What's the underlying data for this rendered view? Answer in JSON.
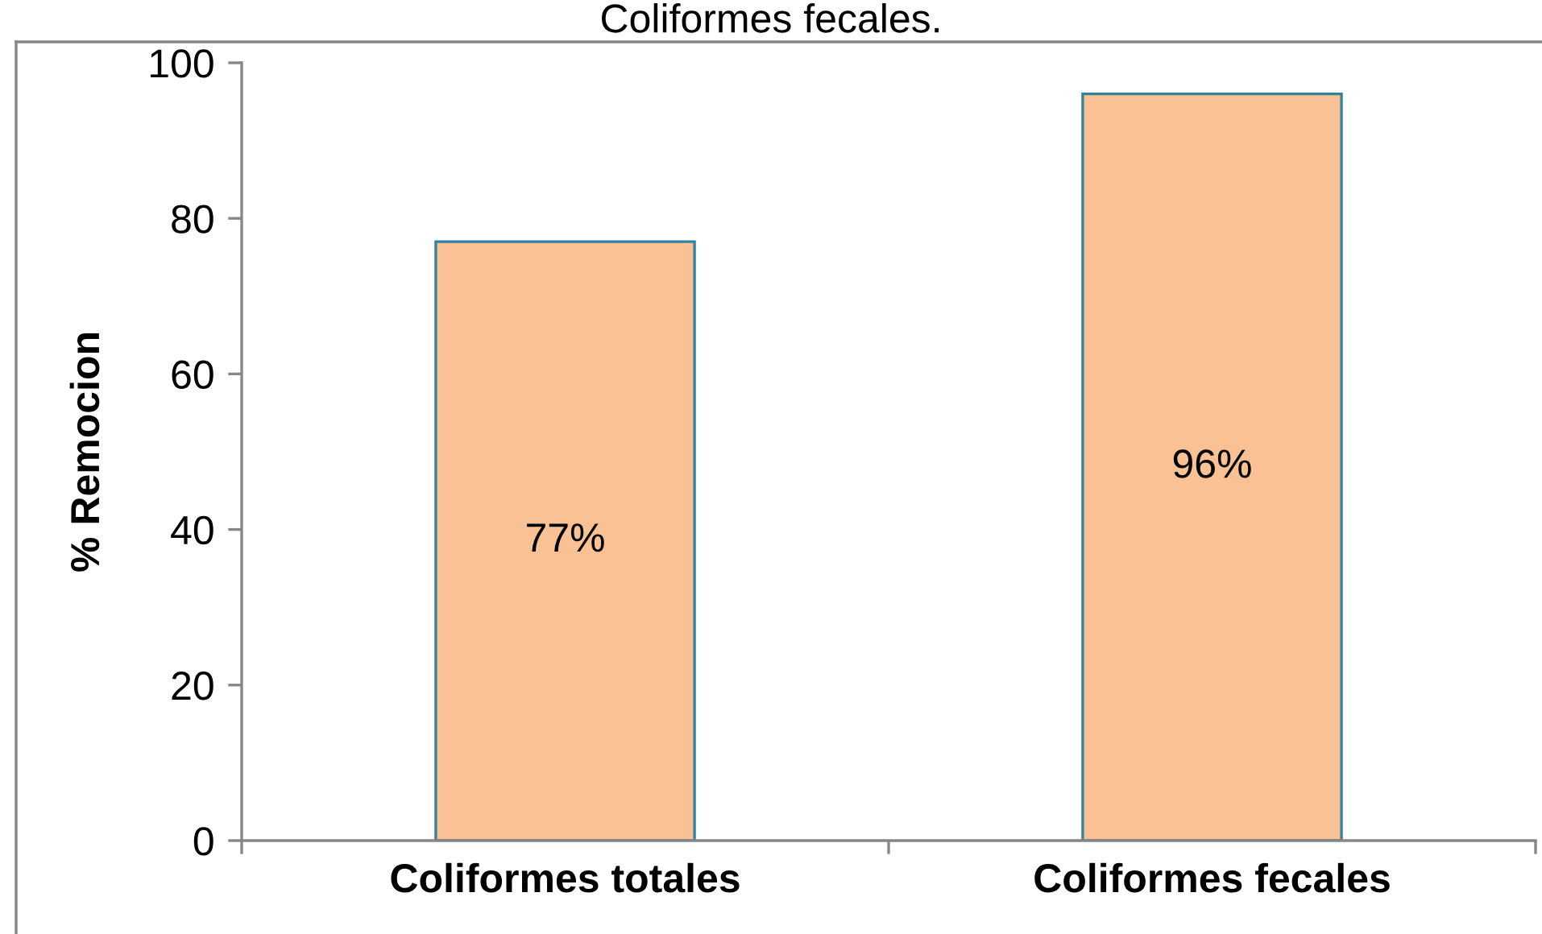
{
  "chart_data": {
    "type": "bar",
    "title": "Coliformes fecales.",
    "ylabel": "% Remocion",
    "categories": [
      "Coliformes totales",
      "Coliformes fecales"
    ],
    "values": [
      77,
      96
    ],
    "color": "#f9c194",
    "value_labels": [
      "77%",
      "96%"
    ],
    "ylim": [
      0,
      100
    ],
    "yticks": [
      0,
      20,
      40,
      60,
      80,
      100
    ]
  }
}
